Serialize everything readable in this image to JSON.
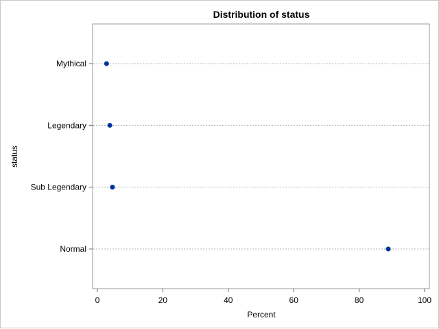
{
  "chart_data": {
    "type": "scatter",
    "title": "Distribution of status",
    "xlabel": "Percent",
    "ylabel": "status",
    "xlim": [
      0,
      100
    ],
    "xticks": [
      0,
      20,
      40,
      60,
      80,
      100
    ],
    "categories": [
      "Mythical",
      "Legendary",
      "Sub Legendary",
      "Normal"
    ],
    "values": [
      2.8,
      3.8,
      4.6,
      88.9
    ],
    "marker_color": "#003399",
    "grid": "horizontal dotted reference lines",
    "legend": "none"
  }
}
